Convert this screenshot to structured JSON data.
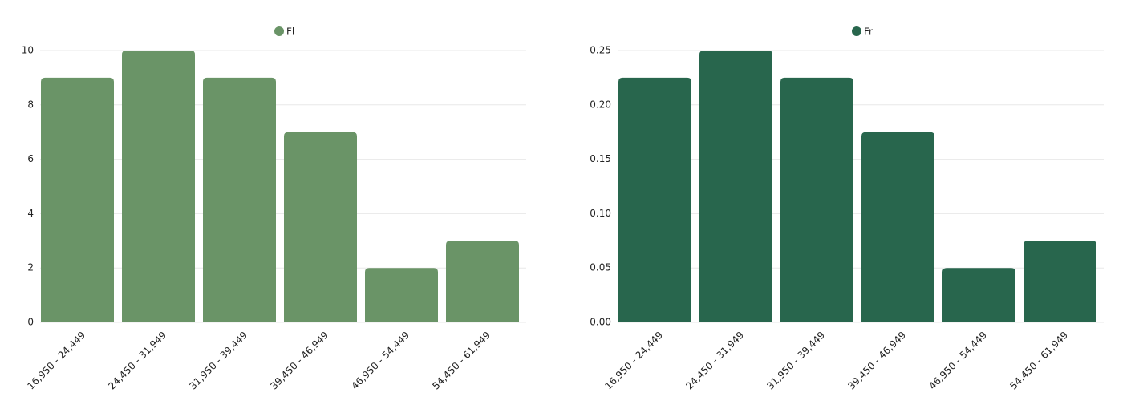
{
  "chart_data": [
    {
      "type": "bar",
      "categories": [
        "16,950 - 24,449",
        "24,450 - 31,949",
        "31,950 - 39,449",
        "39,450 - 46,949",
        "46,950 - 54,449",
        "54,450 - 61,949"
      ],
      "series": [
        {
          "name": "Fl",
          "color": "#6a9467",
          "values": [
            9,
            10,
            9,
            7,
            2,
            3
          ]
        }
      ],
      "ylim": [
        0,
        10
      ],
      "yticks": [
        0,
        2,
        4,
        6,
        8,
        10
      ],
      "grid": true
    },
    {
      "type": "bar",
      "categories": [
        "16,950 - 24,449",
        "24,450 - 31,949",
        "31,950 - 39,449",
        "39,450 - 46,949",
        "46,950 - 54,449",
        "54,450 - 61,949"
      ],
      "series": [
        {
          "name": "Fr",
          "color": "#28664d",
          "values": [
            0.225,
            0.25,
            0.225,
            0.175,
            0.05,
            0.075
          ]
        }
      ],
      "ylim": [
        0,
        0.25
      ],
      "yticks": [
        {
          "value": 0,
          "label": "0.00"
        },
        0.05,
        {
          "value": 0.1,
          "label": "0.10"
        },
        0.15,
        {
          "value": 0.2,
          "label": "0.20"
        },
        0.25
      ],
      "grid": true
    }
  ]
}
